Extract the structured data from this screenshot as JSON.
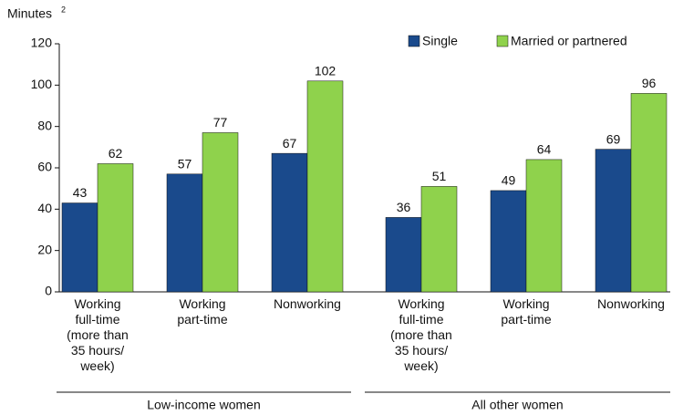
{
  "chart_data": {
    "type": "bar",
    "ylabel": "Minutes",
    "ylabel_note": "2",
    "categories": [
      "Working\nfull-time\n(more than\n35 hours/\nweek)",
      "Working\npart-time",
      "Nonworking",
      "Working\nfull-time\n(more than\n35 hours/\nweek)",
      "Working\npart-time",
      "Nonworking"
    ],
    "groups": [
      "Low-income women",
      "All other women"
    ],
    "series": [
      {
        "name": "Single",
        "color": "#1a4a8c",
        "values": [
          43,
          57,
          67,
          36,
          49,
          69
        ]
      },
      {
        "name": "Married or partnered",
        "color": "#8fd24c",
        "values": [
          62,
          77,
          102,
          51,
          64,
          96
        ]
      }
    ],
    "ylim": [
      0,
      120
    ],
    "yticks": [
      0,
      20,
      40,
      60,
      80,
      100,
      120
    ],
    "legend": "top-right"
  }
}
